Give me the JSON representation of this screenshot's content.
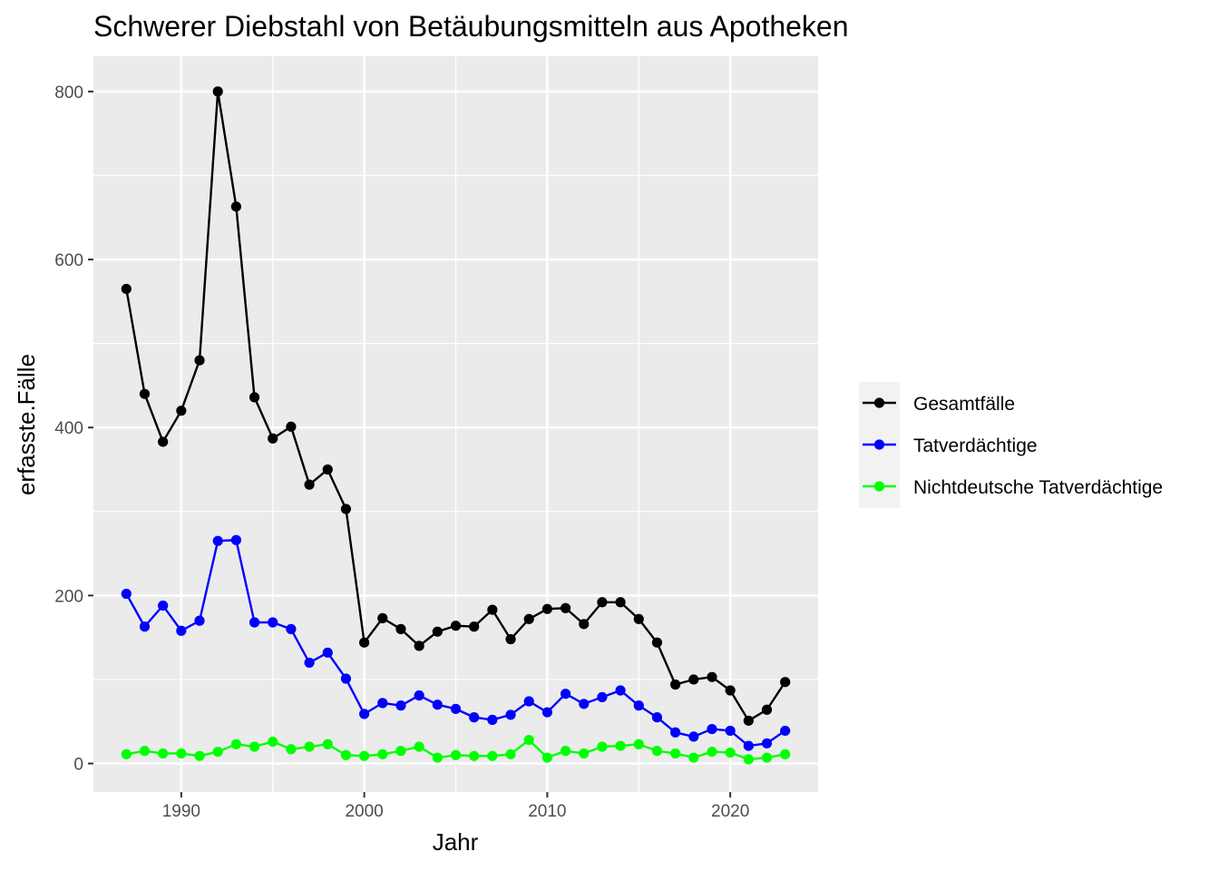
{
  "chart_data": {
    "type": "line",
    "title": "Schwerer Diebstahl von Betäubungsmitteln aus Apotheken",
    "xlabel": "Jahr",
    "ylabel": "erfasste.Fälle",
    "xlim": [
      1985.2,
      2024.8
    ],
    "ylim": [
      -34,
      842
    ],
    "x_ticks": [
      1990,
      2000,
      2010,
      2020
    ],
    "y_ticks": [
      0,
      200,
      400,
      600,
      800
    ],
    "x_minor": [
      1985,
      1995,
      2005,
      2015
    ],
    "y_minor": [
      100,
      300,
      500,
      700
    ],
    "grid": true,
    "legend_position": "right",
    "x": [
      1987,
      1988,
      1989,
      1990,
      1991,
      1992,
      1993,
      1994,
      1995,
      1996,
      1997,
      1998,
      1999,
      2000,
      2001,
      2002,
      2003,
      2004,
      2005,
      2006,
      2007,
      2008,
      2009,
      2010,
      2011,
      2012,
      2013,
      2014,
      2015,
      2016,
      2017,
      2018,
      2019,
      2020,
      2021,
      2022,
      2023
    ],
    "series": [
      {
        "name": "Gesamtfälle",
        "color": "#000000",
        "values": [
          565,
          440,
          383,
          420,
          480,
          800,
          663,
          436,
          387,
          401,
          332,
          350,
          303,
          144,
          173,
          160,
          140,
          157,
          164,
          163,
          183,
          148,
          172,
          184,
          185,
          166,
          192,
          192,
          172,
          144,
          94,
          100,
          103,
          87,
          51,
          64,
          97
        ]
      },
      {
        "name": "Tatverdächtige",
        "color": "#0000ff",
        "values": [
          202,
          163,
          188,
          158,
          170,
          265,
          266,
          168,
          168,
          160,
          120,
          132,
          101,
          59,
          72,
          69,
          81,
          70,
          65,
          55,
          52,
          58,
          74,
          61,
          83,
          71,
          79,
          87,
          69,
          55,
          37,
          32,
          41,
          39,
          21,
          24,
          39
        ]
      },
      {
        "name": "Nichtdeutsche Tatverdächtige",
        "color": "#00ff00",
        "values": [
          11,
          15,
          12,
          12,
          9,
          14,
          23,
          20,
          26,
          17,
          20,
          23,
          10,
          9,
          11,
          15,
          20,
          7,
          10,
          9,
          9,
          11,
          28,
          7,
          15,
          12,
          20,
          21,
          23,
          15,
          12,
          7,
          14,
          13,
          5,
          7,
          11
        ]
      }
    ]
  }
}
